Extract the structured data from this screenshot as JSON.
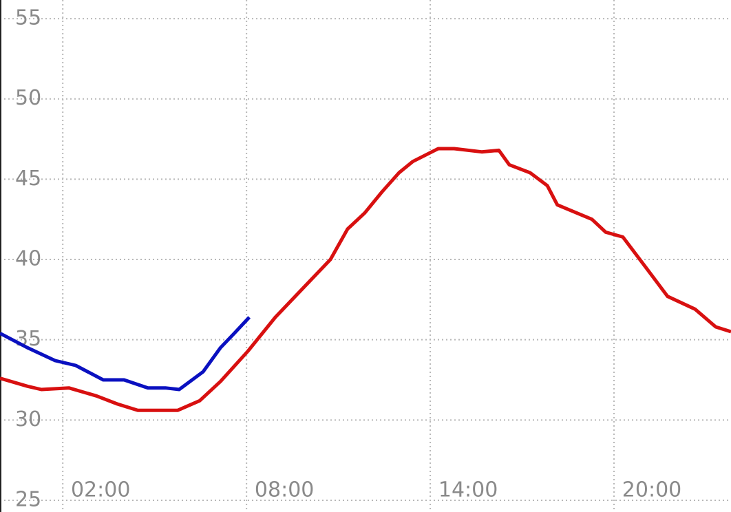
{
  "chart_data": {
    "type": "line",
    "xlim": [
      -0.05,
      23.82
    ],
    "ylim": [
      24.27,
      56.16
    ],
    "yticks": [
      25,
      30,
      35,
      40,
      45,
      50,
      55
    ],
    "xticks": [
      {
        "value": 2,
        "label": "02:00"
      },
      {
        "value": 8,
        "label": "08:00"
      },
      {
        "value": 14,
        "label": "14:00"
      },
      {
        "value": 20,
        "label": "20:00"
      }
    ],
    "grid": true,
    "series": [
      {
        "color": "#d81010",
        "x": [
          -0.05,
          0.85,
          1.3,
          2.2,
          3.1,
          3.78,
          4.45,
          4.9,
          5.75,
          6.47,
          7.15,
          8.05,
          8.94,
          9.84,
          10.74,
          11.3,
          11.86,
          12.42,
          12.98,
          13.43,
          14.26,
          14.78,
          15.68,
          16.24,
          16.58,
          17.26,
          17.82,
          18.15,
          19.28,
          19.73,
          20.29,
          21.08,
          21.75,
          22.65,
          23.32,
          23.82
        ],
        "values": [
          32.6,
          32.1,
          31.9,
          32.0,
          31.5,
          31.0,
          30.6,
          30.6,
          30.6,
          31.2,
          32.4,
          34.3,
          36.4,
          38.2,
          40.0,
          41.9,
          42.9,
          44.2,
          45.4,
          46.1,
          46.9,
          46.9,
          46.7,
          46.8,
          45.9,
          45.4,
          44.6,
          43.4,
          42.5,
          41.7,
          41.4,
          39.4,
          37.7,
          36.9,
          35.8,
          35.5
        ]
      },
      {
        "color": "#0a10c0",
        "x": [
          -0.05,
          0.85,
          1.75,
          2.42,
          3.32,
          4.0,
          4.78,
          5.35,
          5.8,
          6.58,
          7.15,
          7.6,
          8.09
        ],
        "values": [
          35.4,
          34.5,
          33.7,
          33.4,
          32.5,
          32.5,
          32.0,
          32.0,
          31.9,
          33.0,
          34.5,
          35.4,
          36.4
        ]
      }
    ]
  }
}
